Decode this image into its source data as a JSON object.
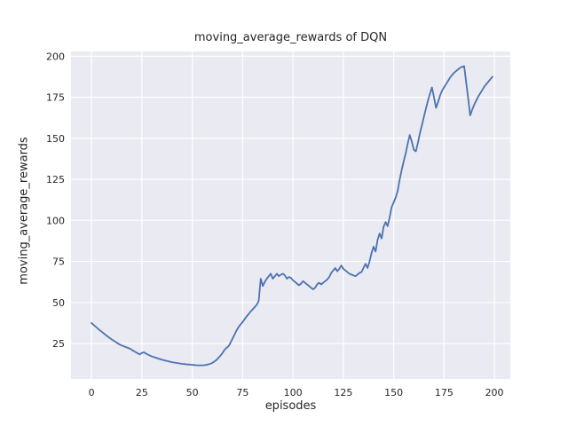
{
  "chart_data": {
    "type": "line",
    "title": "moving_average_rewards of DQN",
    "xlabel": "episodes",
    "ylabel": "moving_average_rewards",
    "style": "seaborn-darkgrid",
    "grid": true,
    "legend": false,
    "plot_bg_color": "#EAEAF2",
    "grid_color": "#FFFFFF",
    "line_color": "#4C72B0",
    "text_color": "#262626",
    "x_ticks": [
      0,
      25,
      50,
      75,
      100,
      125,
      150,
      175,
      200
    ],
    "y_ticks": [
      25,
      50,
      75,
      100,
      125,
      150,
      175,
      200
    ],
    "xlim": [
      -10.2,
      207.9
    ],
    "ylim": [
      3.4,
      202.9
    ],
    "series": [
      {
        "name": "moving_average_rewards",
        "x_start": 0,
        "x_step": 1,
        "values": [
          37.5,
          36.4,
          35.3,
          34.2,
          33.2,
          32.2,
          31.2,
          30.2,
          29.3,
          28.4,
          27.5,
          26.7,
          25.9,
          25.1,
          24.4,
          23.8,
          23.3,
          22.8,
          22.4,
          21.9,
          21.2,
          20.4,
          19.7,
          18.9,
          18.4,
          19.3,
          19.6,
          18.9,
          18.2,
          17.6,
          17.1,
          16.7,
          16.3,
          15.9,
          15.5,
          15.1,
          14.8,
          14.5,
          14.2,
          13.9,
          13.6,
          13.4,
          13.2,
          13.0,
          12.8,
          12.6,
          12.5,
          12.3,
          12.2,
          12.1,
          12.0,
          11.9,
          11.8,
          11.7,
          11.7,
          11.7,
          11.8,
          12.0,
          12.3,
          12.7,
          13.2,
          14.0,
          15.0,
          16.2,
          17.6,
          19.2,
          21.0,
          22.3,
          23.3,
          25.5,
          28.0,
          30.5,
          33.0,
          35.0,
          36.6,
          38.1,
          39.8,
          41.5,
          43.0,
          44.5,
          45.8,
          47.2,
          48.6,
          51.0,
          64.5,
          60.0,
          62.5,
          64.5,
          66.0,
          67.5,
          64.5,
          66.0,
          67.5,
          66.0,
          67.0,
          67.5,
          66.5,
          64.5,
          65.5,
          65.0,
          63.5,
          62.5,
          61.5,
          60.5,
          61.5,
          63.0,
          62.0,
          61.0,
          60.0,
          59.0,
          58.0,
          59.0,
          61.0,
          62.0,
          61.0,
          62.0,
          63.0,
          64.0,
          65.5,
          68.0,
          69.5,
          71.0,
          69.0,
          70.5,
          72.5,
          70.5,
          69.5,
          68.5,
          67.5,
          67.0,
          66.5,
          66.0,
          67.0,
          68.0,
          68.5,
          71.0,
          73.5,
          71.0,
          75.0,
          80.0,
          84.0,
          81.0,
          88.0,
          92.0,
          89.0,
          96.0,
          99.0,
          96.5,
          102.0,
          108.0,
          111.0,
          114.0,
          118.0,
          125.0,
          131.0,
          136.0,
          141.0,
          147.0,
          152.0,
          148.0,
          143.0,
          142.0,
          147.0,
          153.0,
          158.0,
          163.0,
          168.0,
          173.0,
          177.0,
          181.0,
          175.0,
          168.5,
          172.0,
          176.0,
          179.0,
          181.0,
          183.0,
          185.0,
          187.0,
          188.5,
          190.0,
          191.0,
          192.0,
          193.0,
          193.5,
          194.0,
          184.0,
          174.0,
          164.0,
          167.5,
          170.5,
          173.0,
          175.5,
          177.5,
          179.5,
          181.5,
          183.0,
          184.5,
          186.0,
          187.5
        ]
      }
    ]
  }
}
